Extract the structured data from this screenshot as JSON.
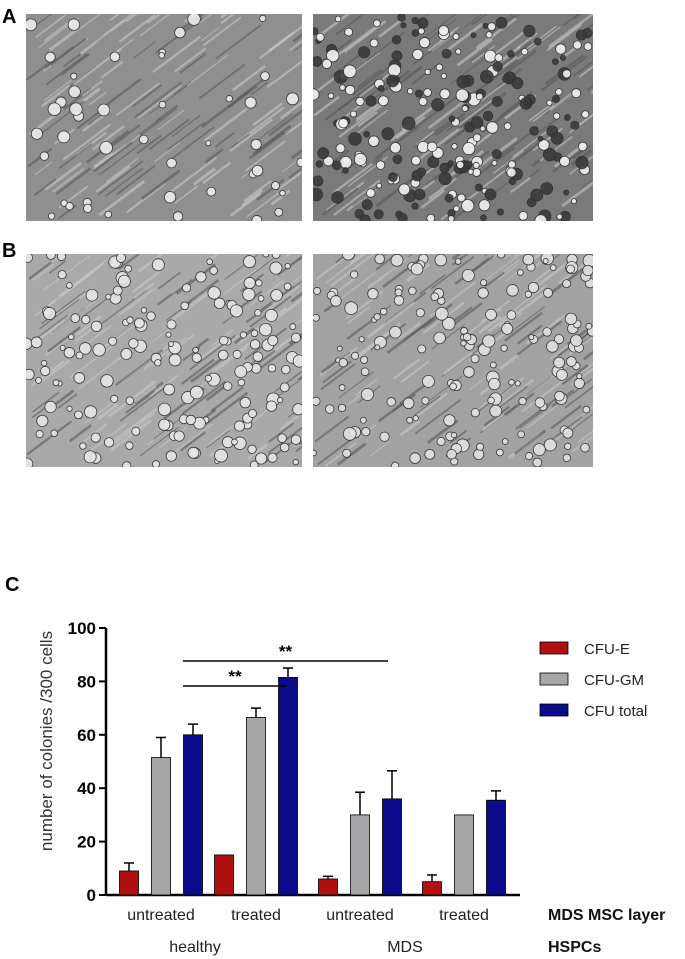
{
  "panels": {
    "a": "A",
    "b": "B",
    "c": "C"
  },
  "micrographs": [
    {
      "id": "A-left",
      "tone": "#8f8f8f",
      "cells": "#ededed"
    },
    {
      "id": "A-right",
      "tone": "#7a7a7a",
      "cells": "#f2f2f2"
    },
    {
      "id": "B-left",
      "tone": "#a9a9a9",
      "cells": "#e6e6e6"
    },
    {
      "id": "B-right",
      "tone": "#a2a2a2",
      "cells": "#e2e2e2"
    }
  ],
  "chart_data": {
    "type": "bar",
    "ylabel": "number of colonies /300 cells",
    "ylim": [
      0,
      100
    ],
    "yticks": [
      0,
      20,
      40,
      60,
      80,
      100
    ],
    "categories": [
      "untreated",
      "treated",
      "untreated",
      "treated"
    ],
    "groups": [
      "healthy",
      "MDS"
    ],
    "row_labels": [
      "MDS MSC layer",
      "HSPCs"
    ],
    "series": [
      {
        "name": "CFU-E",
        "color": "#b01010",
        "values": [
          9,
          15,
          6,
          5
        ],
        "errors": [
          3,
          0,
          1,
          2.5
        ]
      },
      {
        "name": "CFU-GM",
        "color": "#a6a6a8",
        "values": [
          51.5,
          66.5,
          30,
          30
        ],
        "errors": [
          7.5,
          3.5,
          8.5,
          0
        ]
      },
      {
        "name": "CFU total",
        "color": "#0b0b8c",
        "values": [
          60,
          81.5,
          36,
          35.5
        ],
        "errors": [
          4,
          3.5,
          10.5,
          3.5
        ]
      }
    ],
    "significance": [
      {
        "label": "**",
        "from": "healthy untreated",
        "to": "MDS untreated"
      },
      {
        "label": "**",
        "from": "healthy untreated",
        "to": "healthy treated"
      }
    ],
    "legend_position": "right"
  }
}
